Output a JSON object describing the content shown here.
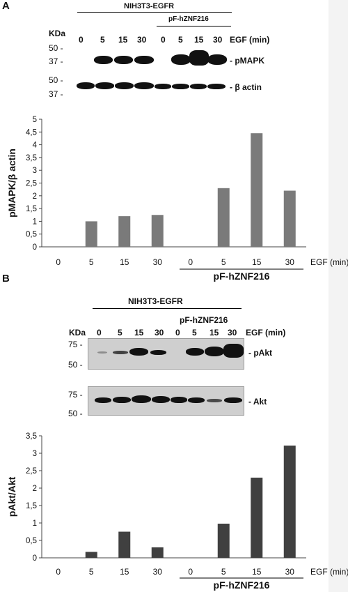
{
  "panel_a": {
    "letter": "A",
    "header_group": "NIH3T3-EGFR",
    "transfect_group": "pF-hZNF216",
    "kda_label": "KDa",
    "lanes": [
      "0",
      "5",
      "15",
      "30",
      "0",
      "5",
      "15",
      "30"
    ],
    "egf_label": "EGF (min)",
    "markers_top": [
      "50 -",
      "37 -"
    ],
    "markers_bottom": [
      "50 -",
      "37 -"
    ],
    "band_labels": [
      "- pMAPK",
      "- β actin"
    ]
  },
  "panel_b": {
    "letter": "B",
    "header_group": "NIH3T3-EGFR",
    "transfect_group": "pF-hZNF216",
    "kda_label": "KDa",
    "lanes": [
      "0",
      "5",
      "15",
      "30",
      "0",
      "5",
      "15",
      "30"
    ],
    "egf_label": "EGF (min)",
    "markers_top": [
      "75 -",
      "50 -"
    ],
    "markers_bottom": [
      "75 -",
      "50 -"
    ],
    "band_labels": [
      "- pAkt",
      "- Akt"
    ]
  },
  "chart_data": [
    {
      "type": "bar",
      "categories": [
        "0",
        "5",
        "15",
        "30",
        "0",
        "5",
        "15",
        "30"
      ],
      "values": [
        0,
        1.0,
        1.2,
        1.25,
        0,
        2.3,
        4.45,
        2.2
      ],
      "ylabel": "pMAPK/β actin",
      "xlabel": "EGF (min)",
      "group_label": "pF-hZNF216",
      "ylim": [
        0,
        5
      ],
      "yticks": [
        "0",
        "0,5",
        "1",
        "1,5",
        "2",
        "2,5",
        "3",
        "3,5",
        "4",
        "4,5",
        "5"
      ],
      "bar_color": "#7a7a7a",
      "grid": false
    },
    {
      "type": "bar",
      "categories": [
        "0",
        "5",
        "15",
        "30",
        "0",
        "5",
        "15",
        "30"
      ],
      "values": [
        0,
        0.17,
        0.75,
        0.3,
        0,
        0.98,
        2.3,
        3.22
      ],
      "ylabel": "pAkt/Akt",
      "xlabel": "EGF (min)",
      "group_label": "pF-hZNF216",
      "ylim": [
        0,
        3.5
      ],
      "yticks": [
        "0",
        "0,5",
        "1",
        "1,5",
        "2",
        "2,5",
        "3",
        "3,5"
      ],
      "bar_color": "#404040",
      "grid": false
    }
  ]
}
